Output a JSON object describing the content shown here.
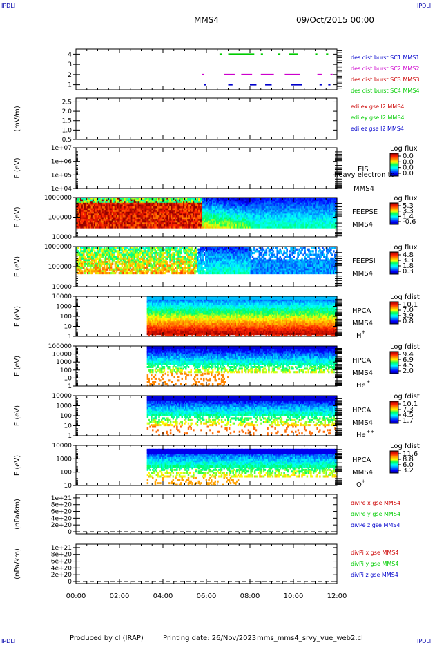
{
  "header": {
    "corner_tl": "IPDLI",
    "corner_tr": "IPDLI",
    "corner_bl": "IPDLI",
    "corner_br": "IPDLI",
    "spacecraft": "MMS4",
    "date": "09/Oct/2015 00:00"
  },
  "footer": {
    "produced_by": "Produced by cl (IRAP)",
    "printing_date": "Printing date: 26/Nov/2023",
    "script": "mms_mms4_srvy_vue_web2.cl"
  },
  "time_axis": {
    "ticks": [
      "00:00",
      "02:00",
      "04:00",
      "06:00",
      "08:00",
      "10:00",
      "12:00"
    ],
    "range_hours": [
      0,
      12
    ]
  },
  "colors": {
    "blue": "#0000cc",
    "magenta": "#cc00cc",
    "red": "#cc0000",
    "green": "#00cc00"
  },
  "chart_data": [
    {
      "type": "scatter",
      "panel": "burst",
      "ylabel": "",
      "ylim": [
        0.5,
        4.5
      ],
      "yticks": [
        "1",
        "2",
        "3",
        "4"
      ],
      "legend": [
        {
          "label": "des dist burst SC1 MMS1",
          "color": "#0000cc"
        },
        {
          "label": "des dist burst SC2 MMS2",
          "color": "#cc00cc"
        },
        {
          "label": "des dist burst SC3 MMS3",
          "color": "#cc0000"
        },
        {
          "label": "des dist burst SC4 MMS4",
          "color": "#00cc00"
        }
      ],
      "series": [
        {
          "name": "SC1 MMS1",
          "y": 1,
          "color": "#0000cc",
          "intervals": [
            [
              5.9,
              6.0
            ],
            [
              7.0,
              7.2
            ],
            [
              8.0,
              8.3
            ],
            [
              8.7,
              9.0
            ],
            [
              9.9,
              10.4
            ],
            [
              11.2,
              11.3
            ],
            [
              11.6,
              11.7
            ]
          ]
        },
        {
          "name": "SC2 MMS2",
          "y": 2,
          "color": "#cc00cc",
          "intervals": [
            [
              5.8,
              5.9
            ],
            [
              6.8,
              7.3
            ],
            [
              7.6,
              8.1
            ],
            [
              8.5,
              9.1
            ],
            [
              9.6,
              10.3
            ],
            [
              11.1,
              11.3
            ],
            [
              11.7,
              11.8
            ]
          ]
        },
        {
          "name": "SC4 MMS4",
          "y": 4,
          "color": "#00cc00",
          "intervals": [
            [
              6.6,
              6.7
            ],
            [
              7.0,
              8.2
            ],
            [
              8.5,
              8.6
            ],
            [
              9.3,
              9.4
            ],
            [
              9.8,
              10.2
            ],
            [
              11.0,
              11.1
            ],
            [
              11.5,
              11.6
            ]
          ]
        }
      ]
    },
    {
      "type": "line",
      "panel": "edi",
      "ylabel": "(mV/m)",
      "ylim": [
        0.5,
        2.7
      ],
      "yticks": [
        "0.5",
        "1.0",
        "1.5",
        "2.0",
        "2.5"
      ],
      "legend": [
        {
          "label": "edi ex gse l2 MMS4",
          "color": "#cc0000"
        },
        {
          "label": "edi ey gse l2 MMS4",
          "color": "#00cc00"
        },
        {
          "label": "edi ez gse l2 MMS4",
          "color": "#0000cc"
        }
      ],
      "series": []
    },
    {
      "type": "heatmap",
      "panel": "eis",
      "ylabel": "E (eV)",
      "yticks": [
        "1e+07",
        "1e+06",
        "1e+05",
        "1e+04"
      ],
      "labels": [
        "EIS",
        "MMS4"
      ],
      "overlay_text": "heavy electron to",
      "colorbar": {
        "title": "Log flux",
        "ticks": [
          "0.0",
          "0.0",
          "0.0",
          "0.0"
        ]
      }
    },
    {
      "type": "heatmap",
      "panel": "feeps_e",
      "ylabel": "E (eV)",
      "yticks": [
        "1000000",
        "100000",
        "10000"
      ],
      "labels": [
        "FEEPSE",
        "MMS4"
      ],
      "colorbar": {
        "title": "Log flux",
        "ticks": [
          "5.3",
          "3.3",
          "1.4",
          "-0.6"
        ]
      }
    },
    {
      "type": "heatmap",
      "panel": "feeps_i",
      "ylabel": "E (eV)",
      "yticks": [
        "1000000",
        "100000",
        "10000"
      ],
      "labels": [
        "FEEPSI",
        "MMS4"
      ],
      "colorbar": {
        "title": "Log flux",
        "ticks": [
          "4.8",
          "3.3",
          "1.8",
          "0.3"
        ]
      }
    },
    {
      "type": "heatmap",
      "panel": "hpca_h",
      "ylabel": "E (eV)",
      "yticks": [
        "10000",
        "1000",
        "100",
        "10",
        "1"
      ],
      "labels": [
        "HPCA",
        "MMS4"
      ],
      "species": {
        "base": "H",
        "sup": "+"
      },
      "colorbar": {
        "title": "Log fdist",
        "ticks": [
          "10.1",
          "7.0",
          "3.9",
          "0.8"
        ]
      }
    },
    {
      "type": "heatmap",
      "panel": "hpca_he",
      "ylabel": "E (eV)",
      "yticks": [
        "100000",
        "10000",
        "1000",
        "100",
        "10",
        "1"
      ],
      "labels": [
        "HPCA",
        "MMS4"
      ],
      "species": {
        "base": "He",
        "sup": "+"
      },
      "colorbar": {
        "title": "Log fdist",
        "ticks": [
          "9.4",
          "6.9",
          "4.5",
          "2.0"
        ]
      }
    },
    {
      "type": "heatmap",
      "panel": "hpca_hepp",
      "ylabel": "E (eV)",
      "yticks": [
        "10000",
        "1000",
        "100",
        "10",
        "1"
      ],
      "labels": [
        "HPCA",
        "MMS4"
      ],
      "species": {
        "base": "He",
        "sup": "++"
      },
      "colorbar": {
        "title": "Log fdist",
        "ticks": [
          "10.1",
          "7.3",
          "4.5",
          "1.7"
        ]
      }
    },
    {
      "type": "heatmap",
      "panel": "hpca_o",
      "ylabel": "E (eV)",
      "yticks": [
        "10000",
        "1000",
        "100",
        "10"
      ],
      "labels": [
        "HPCA",
        "MMS4"
      ],
      "species": {
        "base": "O",
        "sup": "+"
      },
      "colorbar": {
        "title": "Log fdist",
        "ticks": [
          "11.6",
          "8.8",
          "6.0",
          "3.2"
        ]
      }
    },
    {
      "type": "line",
      "panel": "divpe",
      "ylabel": "(nPa/km)",
      "yticks": [
        "1e+21",
        "8e+20",
        "6e+20",
        "4e+20",
        "2e+20",
        "0"
      ],
      "ylim": [
        0,
        1.1e+21
      ],
      "legend": [
        {
          "label": "divPe x gse MMS4",
          "color": "#cc0000"
        },
        {
          "label": "divPe y gse MMS4",
          "color": "#00cc00"
        },
        {
          "label": "divPe z gse MMS4",
          "color": "#0000cc"
        }
      ],
      "series": [
        {
          "name": "zero",
          "values": [
            0,
            0
          ]
        }
      ]
    },
    {
      "type": "line",
      "panel": "divpi",
      "ylabel": "(nPa/km)",
      "yticks": [
        "1e+21",
        "8e+20",
        "6e+20",
        "4e+20",
        "2e+20",
        "0"
      ],
      "ylim": [
        0,
        1.1e+21
      ],
      "legend": [
        {
          "label": "divPi x gse MMS4",
          "color": "#cc0000"
        },
        {
          "label": "divPi y gse MMS4",
          "color": "#00cc00"
        },
        {
          "label": "divPi z gse MMS4",
          "color": "#0000cc"
        }
      ],
      "series": [
        {
          "name": "zero",
          "values": [
            0,
            0
          ]
        }
      ]
    }
  ]
}
